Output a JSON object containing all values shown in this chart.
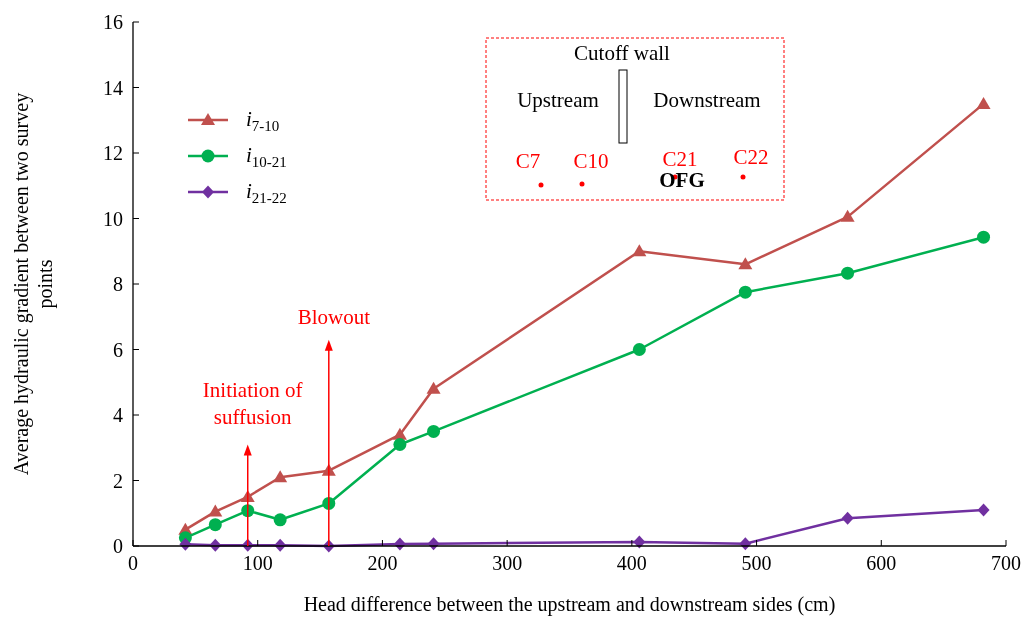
{
  "chart_data": {
    "type": "line",
    "xlabel": "Head difference between the upstream and downstream sides (cm)",
    "ylabel": "Average hydraulic gradient between two survey points",
    "x": [
      42,
      66,
      92,
      118,
      157,
      214,
      241,
      406,
      491,
      573,
      682
    ],
    "xlim": [
      0,
      700
    ],
    "xticks": [
      0,
      100,
      200,
      300,
      400,
      500,
      600,
      700
    ],
    "ylim": [
      0,
      16
    ],
    "yticks": [
      0,
      2,
      4,
      6,
      8,
      10,
      12,
      14,
      16
    ],
    "legend": "top left",
    "ref_lines": [
      {
        "axis": "x",
        "value": 92,
        "label": "Initiation of suffusion",
        "color": "#ff0000"
      },
      {
        "axis": "x",
        "value": 157,
        "label": "Blowout",
        "color": "#ff0000"
      }
    ],
    "series": [
      {
        "name": "i$_{7-10}$",
        "color": "#c0504d",
        "marker": "triangle",
        "values": [
          0.5,
          1.05,
          1.5,
          2.1,
          2.3,
          3.4,
          4.8,
          9.0,
          8.6,
          10.05,
          13.5
        ]
      },
      {
        "name": "i$_{10-21}$",
        "color": "#00b050",
        "marker": "circle",
        "values": [
          0.25,
          0.65,
          1.08,
          0.8,
          1.3,
          3.1,
          3.5,
          6.0,
          7.75,
          8.33,
          9.43
        ]
      },
      {
        "name": "i$_{21-22}$",
        "color": "#7030a0",
        "marker": "diamond",
        "values": [
          0.05,
          0.02,
          0.02,
          0.02,
          0.0,
          0.06,
          0.07,
          0.12,
          0.07,
          0.85,
          1.1
        ]
      }
    ],
    "annotations": [
      "Cutoff wall",
      "Upstream",
      "Downstream",
      "C7",
      "C10",
      "C21",
      "C22",
      "OFG"
    ]
  }
}
